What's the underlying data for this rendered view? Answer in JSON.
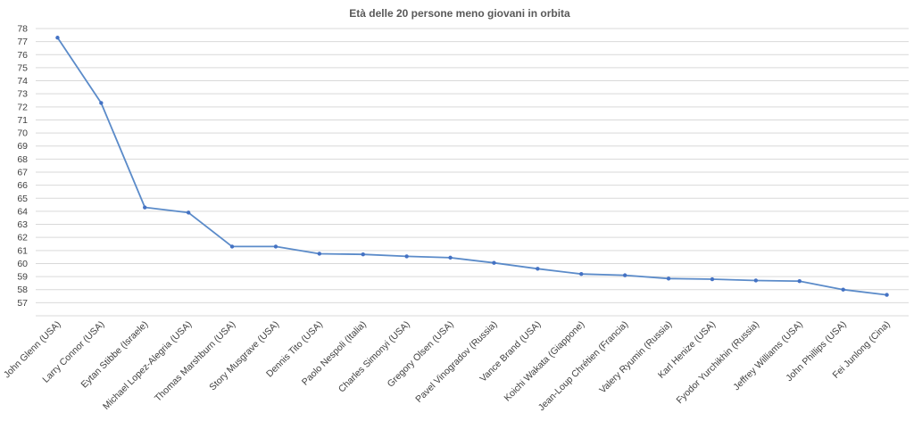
{
  "chart_data": {
    "type": "line",
    "title": "Età delle 20 persone meno giovani in orbita",
    "xlabel": "",
    "ylabel": "",
    "ylim": [
      56,
      78
    ],
    "yticks": [
      57,
      58,
      59,
      60,
      61,
      62,
      63,
      64,
      65,
      66,
      67,
      68,
      69,
      70,
      71,
      72,
      73,
      74,
      75,
      76,
      77,
      78
    ],
    "grid": true,
    "legend": "none",
    "categories": [
      "John Glenn (USA)",
      "Larry Connor (USA)",
      "Eytan Stibbe (Israele)",
      "Michael Lopez-Alegria (USA)",
      "Thomas Marshburn (USA)",
      "Story Musgrave (USA)",
      "Dennis Tito (USA)",
      "Paolo Nespoli (Italia)",
      "Charles Simonyi (USA)",
      "Gregory Olsen (USA)",
      "Pavel Vinogradov (Russia)",
      "Vance Brand (USA)",
      "Koichi Wakata (Giappone)",
      "Jean-Loup Chrétien (Francia)",
      "Valery Ryumin (Russia)",
      "Karl Henize (USA)",
      "Fyodor Yurchikhin (Russia)",
      "Jeffrey Williams (USA)",
      "John Phillips (USA)",
      "Fei Junlong (Cina)"
    ],
    "series": [
      {
        "values": [
          77.3,
          72.3,
          64.3,
          63.9,
          61.3,
          61.3,
          60.75,
          60.7,
          60.55,
          60.45,
          60.05,
          59.6,
          59.2,
          59.1,
          58.85,
          58.8,
          58.7,
          58.65,
          58.0,
          57.6
        ]
      }
    ],
    "colors": {
      "line": "#5b8bc9",
      "marker": "#4472c4",
      "grid": "#d9d9d9",
      "text": "#404040"
    }
  }
}
